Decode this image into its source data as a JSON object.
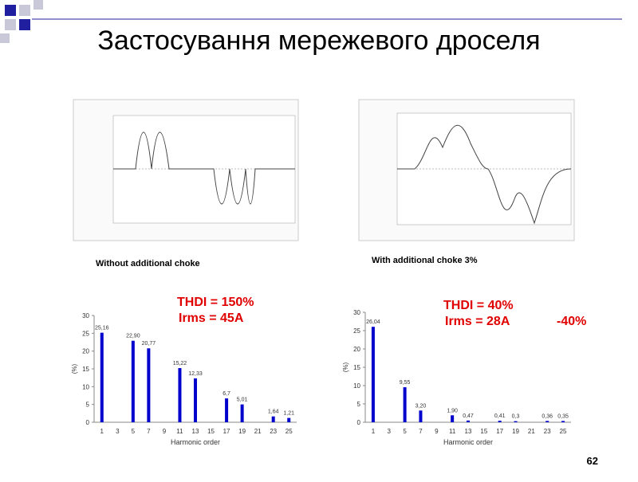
{
  "header": {
    "title": "Застосування мережевого дроселя"
  },
  "captions": [
    "Without additional choke",
    "With additional choke 3%"
  ],
  "page_number": "62",
  "chart_data": [
    {
      "type": "bar",
      "color": "#0000cc",
      "categories": [
        "1",
        "3",
        "5",
        "7",
        "9",
        "11",
        "13",
        "15",
        "17",
        "19",
        "21",
        "23",
        "25"
      ],
      "values": [
        25.16,
        null,
        22.9,
        20.77,
        null,
        15.22,
        12.33,
        null,
        6.7,
        5.01,
        null,
        1.64,
        1.21
      ],
      "value_labels": [
        "25,16",
        null,
        "22,90",
        "20,77",
        null,
        "15,22",
        "12,33",
        null,
        "6,7",
        "5,01",
        null,
        "1,64",
        "1,21"
      ],
      "ylim": [
        0,
        30
      ],
      "yticks": [
        0,
        5,
        10,
        15,
        20,
        25,
        30
      ],
      "y_label": "(%)",
      "x_label": "Harmonic order",
      "annotations": [
        "THDI = 150%",
        "Irms = 45A"
      ]
    },
    {
      "type": "bar",
      "color": "#0000cc",
      "categories": [
        "1",
        "3",
        "5",
        "7",
        "9",
        "11",
        "13",
        "15",
        "17",
        "19",
        "21",
        "23",
        "25"
      ],
      "values": [
        26.04,
        null,
        9.55,
        3.2,
        null,
        1.9,
        0.47,
        null,
        0.41,
        0.3,
        null,
        0.36,
        0.35
      ],
      "value_labels": [
        "26,04",
        null,
        "9,55",
        "3,20",
        null,
        "1,90",
        "0,47",
        null,
        "0,41",
        "0,3",
        null,
        "0,36",
        "0,35"
      ],
      "ylim": [
        0,
        30
      ],
      "yticks": [
        0,
        5,
        10,
        15,
        20,
        25,
        30
      ],
      "y_label": "(%)",
      "x_label": "Harmonic order",
      "annotations": [
        "THDI = 40%",
        "Irms = 28A",
        "-40%"
      ]
    }
  ]
}
